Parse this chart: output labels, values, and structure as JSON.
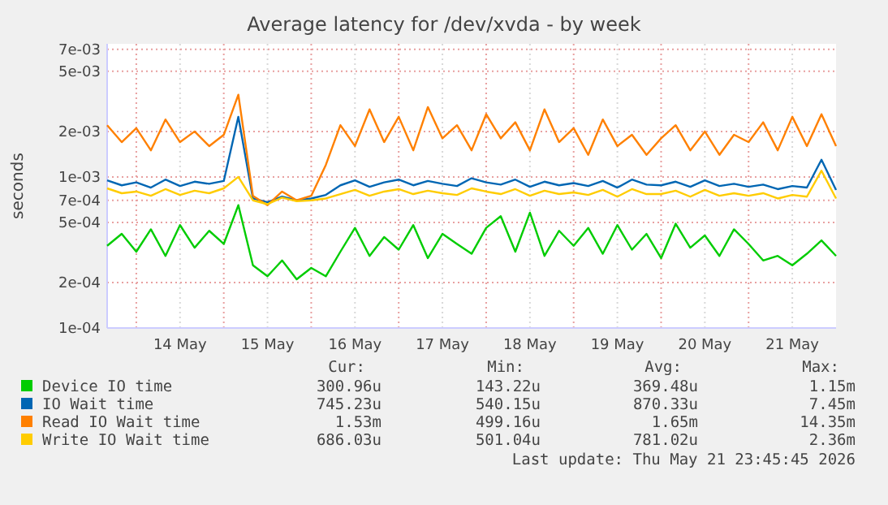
{
  "chart_data": {
    "type": "line",
    "title": "Average latency for /dev/xvda - by week",
    "ylabel": "seconds",
    "log": "y",
    "grid": true,
    "legend": "bottom",
    "x": [
      "2026-05-13T16:00",
      "2026-05-13T20:00",
      "2026-05-14T00:00",
      "2026-05-14T04:00",
      "2026-05-14T08:00",
      "2026-05-14T12:00",
      "2026-05-14T16:00",
      "2026-05-14T20:00",
      "2026-05-15T00:00",
      "2026-05-15T04:00",
      "2026-05-15T08:00",
      "2026-05-15T12:00",
      "2026-05-15T16:00",
      "2026-05-15T20:00",
      "2026-05-16T00:00",
      "2026-05-16T04:00",
      "2026-05-16T08:00",
      "2026-05-16T12:00",
      "2026-05-16T16:00",
      "2026-05-16T20:00",
      "2026-05-17T00:00",
      "2026-05-17T04:00",
      "2026-05-17T08:00",
      "2026-05-17T12:00",
      "2026-05-17T16:00",
      "2026-05-17T20:00",
      "2026-05-18T00:00",
      "2026-05-18T04:00",
      "2026-05-18T08:00",
      "2026-05-18T12:00",
      "2026-05-18T16:00",
      "2026-05-18T20:00",
      "2026-05-19T00:00",
      "2026-05-19T04:00",
      "2026-05-19T08:00",
      "2026-05-19T12:00",
      "2026-05-19T16:00",
      "2026-05-19T20:00",
      "2026-05-20T00:00",
      "2026-05-20T04:00",
      "2026-05-20T08:00",
      "2026-05-20T12:00",
      "2026-05-20T16:00",
      "2026-05-20T20:00",
      "2026-05-21T00:00",
      "2026-05-21T04:00",
      "2026-05-21T08:00",
      "2026-05-21T12:00",
      "2026-05-21T16:00",
      "2026-05-21T20:00",
      "2026-05-22T00:00"
    ],
    "xlim": [
      "2026-05-13T16:00",
      "2026-05-22T00:00"
    ],
    "xticks": [
      {
        "value": "2026-05-14T00:00",
        "label": null
      },
      {
        "value": "2026-05-14T12:00",
        "label": "14 May"
      },
      {
        "value": "2026-05-15T00:00",
        "label": null
      },
      {
        "value": "2026-05-15T12:00",
        "label": "15 May"
      },
      {
        "value": "2026-05-16T00:00",
        "label": null
      },
      {
        "value": "2026-05-16T12:00",
        "label": "16 May"
      },
      {
        "value": "2026-05-17T00:00",
        "label": null
      },
      {
        "value": "2026-05-17T12:00",
        "label": "17 May"
      },
      {
        "value": "2026-05-18T00:00",
        "label": null
      },
      {
        "value": "2026-05-18T12:00",
        "label": "18 May"
      },
      {
        "value": "2026-05-19T00:00",
        "label": null
      },
      {
        "value": "2026-05-19T12:00",
        "label": "19 May"
      },
      {
        "value": "2026-05-20T00:00",
        "label": null
      },
      {
        "value": "2026-05-20T12:00",
        "label": "20 May"
      },
      {
        "value": "2026-05-21T00:00",
        "label": null
      },
      {
        "value": "2026-05-21T12:00",
        "label": "21 May"
      }
    ],
    "ylim": [
      0.0001,
      0.0076
    ],
    "yticks": [
      {
        "value": 0.0001,
        "label": "1e-04"
      },
      {
        "value": 0.0002,
        "label": "2e-04"
      },
      {
        "value": 0.0005,
        "label": "5e-04"
      },
      {
        "value": 0.0007,
        "label": "7e-04"
      },
      {
        "value": 0.001,
        "label": "1e-03"
      },
      {
        "value": 0.002,
        "label": "2e-03"
      },
      {
        "value": 0.005,
        "label": "5e-03"
      },
      {
        "value": 0.007,
        "label": "7e-03"
      }
    ],
    "series": [
      {
        "name": "Device IO time",
        "color": "#00cc00",
        "values": [
          0.00035,
          0.00042,
          0.00032,
          0.00045,
          0.0003,
          0.00048,
          0.00034,
          0.00044,
          0.00036,
          0.00065,
          0.00026,
          0.00022,
          0.00028,
          0.00021,
          0.00025,
          0.00022,
          0.00032,
          0.00046,
          0.0003,
          0.0004,
          0.00033,
          0.00048,
          0.00029,
          0.00042,
          0.00036,
          0.00031,
          0.00046,
          0.00055,
          0.00032,
          0.00058,
          0.0003,
          0.00044,
          0.00035,
          0.00046,
          0.00031,
          0.00048,
          0.00033,
          0.00042,
          0.00029,
          0.00049,
          0.00034,
          0.00041,
          0.0003,
          0.00045,
          0.00036,
          0.00028,
          0.0003,
          0.00026,
          0.00031,
          0.00038,
          0.0003
        ]
      },
      {
        "name": "IO Wait time",
        "color": "#0066b3",
        "values": [
          0.00095,
          0.00088,
          0.00092,
          0.00085,
          0.00096,
          0.00087,
          0.00093,
          0.0009,
          0.00094,
          0.0025,
          0.00072,
          0.00068,
          0.00074,
          0.0007,
          0.00072,
          0.00076,
          0.00088,
          0.00095,
          0.00086,
          0.00092,
          0.00096,
          0.00088,
          0.00094,
          0.0009,
          0.00087,
          0.00098,
          0.00092,
          0.00089,
          0.00096,
          0.00086,
          0.00093,
          0.00088,
          0.00091,
          0.00087,
          0.00094,
          0.00085,
          0.00096,
          0.00089,
          0.00088,
          0.00093,
          0.00086,
          0.00095,
          0.00087,
          0.0009,
          0.00086,
          0.00089,
          0.00083,
          0.00087,
          0.00085,
          0.0013,
          0.00082
        ]
      },
      {
        "name": "Read IO Wait time",
        "color": "#ff8000",
        "values": [
          0.0022,
          0.0017,
          0.0021,
          0.0015,
          0.0024,
          0.0017,
          0.002,
          0.0016,
          0.0019,
          0.0035,
          0.00075,
          0.00065,
          0.0008,
          0.0007,
          0.00075,
          0.0012,
          0.0022,
          0.0016,
          0.0028,
          0.0017,
          0.0025,
          0.0015,
          0.0029,
          0.0018,
          0.0022,
          0.0015,
          0.0026,
          0.0018,
          0.0023,
          0.0015,
          0.0028,
          0.0017,
          0.0021,
          0.0014,
          0.0024,
          0.0016,
          0.0019,
          0.0014,
          0.0018,
          0.0022,
          0.0015,
          0.002,
          0.0014,
          0.0019,
          0.0017,
          0.0023,
          0.0015,
          0.0025,
          0.0016,
          0.0026,
          0.0016
        ]
      },
      {
        "name": "Write IO Wait time",
        "color": "#ffcc00",
        "values": [
          0.00084,
          0.00078,
          0.0008,
          0.00075,
          0.00083,
          0.00076,
          0.00081,
          0.00078,
          0.00084,
          0.001,
          0.0007,
          0.00066,
          0.00073,
          0.00069,
          0.0007,
          0.00072,
          0.00077,
          0.00082,
          0.00075,
          0.0008,
          0.00083,
          0.00077,
          0.00081,
          0.00078,
          0.00076,
          0.00084,
          0.0008,
          0.00077,
          0.00083,
          0.00075,
          0.00081,
          0.00077,
          0.00079,
          0.00076,
          0.00082,
          0.00074,
          0.00083,
          0.00077,
          0.00077,
          0.00081,
          0.00074,
          0.00082,
          0.00075,
          0.00078,
          0.00075,
          0.00078,
          0.00072,
          0.00076,
          0.00074,
          0.0011,
          0.00072
        ]
      }
    ],
    "annotations": [
      "Cur:",
      "Min:",
      "Avg:",
      "Max:",
      "300.96u",
      "143.22u",
      "369.48u",
      "1.15m",
      "745.23u",
      "540.15u",
      "870.33u",
      "7.45m",
      "1.53m",
      "499.16u",
      "1.65m",
      "14.35m",
      "686.03u",
      "501.04u",
      "781.02u",
      "2.36m",
      "Last update: Thu May 21 23:45:45 2026"
    ]
  }
}
